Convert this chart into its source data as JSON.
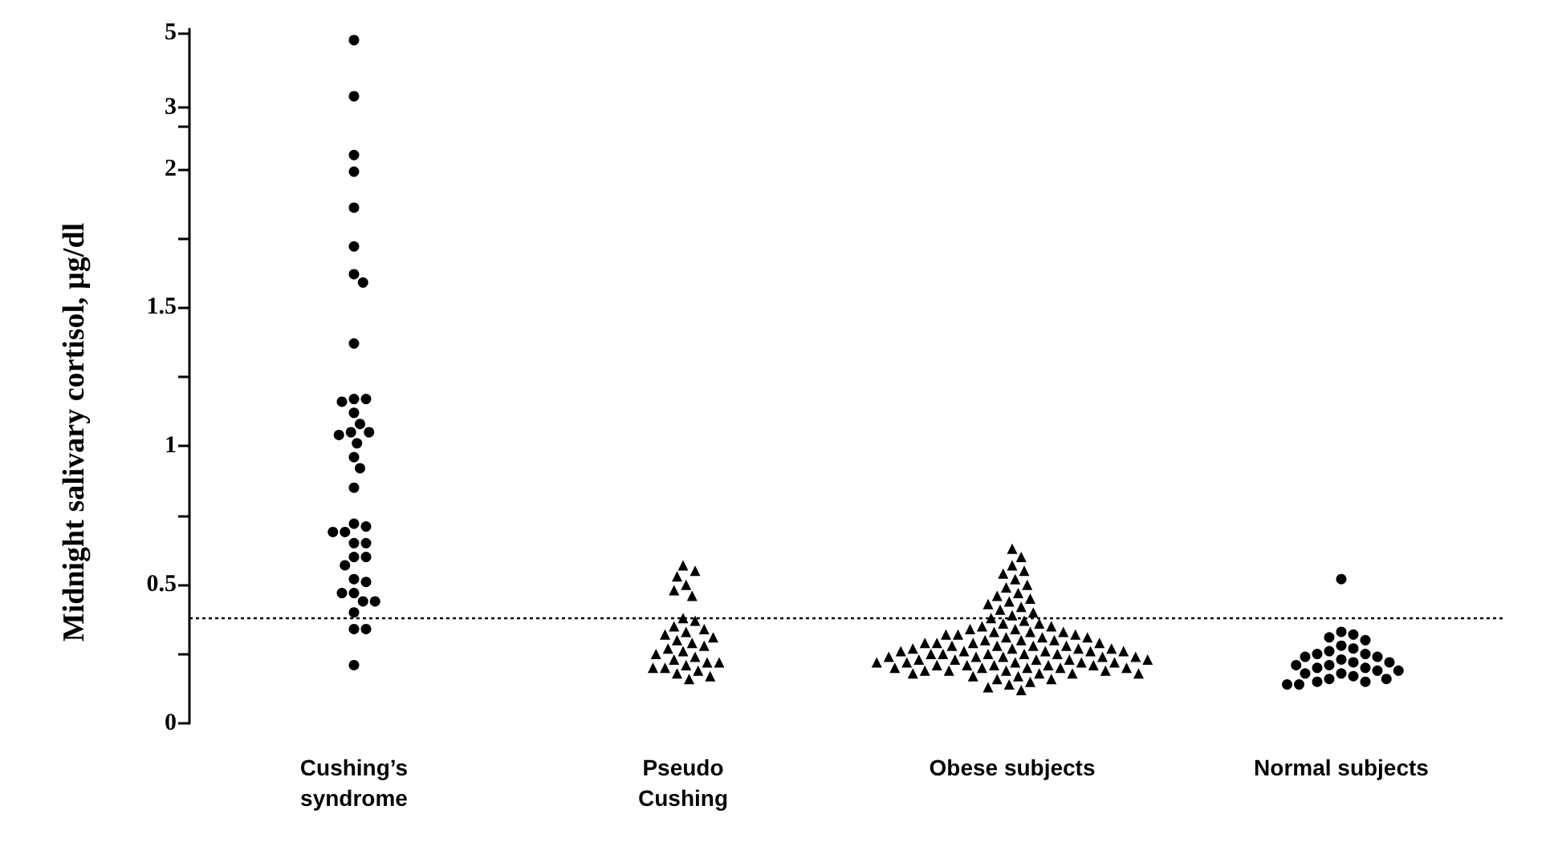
{
  "chart_data": [
    {
      "type": "scatter",
      "categories": [
        "Cushing’s\nsyndrome",
        "Pseudo\nCushing",
        "Obese subjects",
        "Normal subjects"
      ],
      "tick_labels": "y",
      "ylim": [
        2.1,
        5.1
      ],
      "yticks": [
        {
          "value": 2.5,
          "label": null
        },
        3,
        5
      ],
      "series": [
        {
          "color": "#000000",
          "marker": "circle",
          "x": [
            "Cushing’s\nsyndrome",
            "Cushing’s\nsyndrome"
          ],
          "values": [
            4.8,
            3.3
          ]
        }
      ]
    },
    {
      "type": "scatter",
      "ylabel": "Midnight salivary cortisol, µg/dl",
      "categories": [
        "Cushing’s\nsyndrome",
        "Pseudo\nCushing",
        "Obese subjects",
        "Normal subjects"
      ],
      "ylim": [
        0,
        2.1
      ],
      "yticks": [
        0,
        {
          "value": 0.25,
          "label": null
        },
        0.5,
        {
          "value": 0.75,
          "label": null
        },
        1,
        {
          "value": 1.25,
          "label": null
        },
        1.5,
        {
          "value": 1.75,
          "label": null
        },
        2
      ],
      "ref_lines": [
        {
          "axis": "y",
          "value": 0.38,
          "color": "#000000",
          "line_style": "dotted"
        }
      ],
      "series": [
        {
          "color": "#000000",
          "marker": "circle",
          "x": [
            "Cushing’s\nsyndrome",
            "Cushing’s\nsyndrome",
            "Cushing’s\nsyndrome",
            "Cushing’s\nsyndrome",
            "Cushing’s\nsyndrome",
            "Cushing’s\nsyndrome",
            "Cushing’s\nsyndrome",
            "Cushing’s\nsyndrome",
            "Cushing’s\nsyndrome",
            "Cushing’s\nsyndrome",
            "Cushing’s\nsyndrome",
            "Cushing’s\nsyndrome",
            "Cushing’s\nsyndrome",
            "Cushing’s\nsyndrome",
            "Cushing’s\nsyndrome",
            "Cushing’s\nsyndrome",
            "Cushing’s\nsyndrome",
            "Cushing’s\nsyndrome",
            "Cushing’s\nsyndrome",
            "Cushing’s\nsyndrome",
            "Cushing’s\nsyndrome",
            "Cushing’s\nsyndrome",
            "Cushing’s\nsyndrome",
            "Cushing’s\nsyndrome",
            "Cushing’s\nsyndrome",
            "Cushing’s\nsyndrome",
            "Cushing’s\nsyndrome",
            "Cushing’s\nsyndrome",
            "Cushing’s\nsyndrome",
            "Cushing’s\nsyndrome",
            "Cushing’s\nsyndrome",
            "Cushing’s\nsyndrome",
            "Cushing’s\nsyndrome",
            "Cushing’s\nsyndrome",
            "Cushing’s\nsyndrome",
            "Cushing’s\nsyndrome",
            "Cushing’s\nsyndrome",
            "Cushing’s\nsyndrome"
          ],
          "values": [
            2.05,
            1.99,
            1.86,
            1.72,
            1.62,
            1.59,
            1.37,
            1.17,
            1.17,
            1.16,
            1.12,
            1.08,
            1.05,
            1.05,
            1.04,
            1.01,
            0.96,
            0.92,
            0.85,
            0.72,
            0.71,
            0.69,
            0.69,
            0.65,
            0.65,
            0.6,
            0.6,
            0.57,
            0.52,
            0.51,
            0.47,
            0.47,
            0.44,
            0.44,
            0.4,
            0.34,
            0.34,
            0.21
          ]
        },
        {
          "color": "#000000",
          "marker": "triangle",
          "x": [
            "Pseudo\nCushing",
            "Pseudo\nCushing",
            "Pseudo\nCushing",
            "Pseudo\nCushing",
            "Pseudo\nCushing",
            "Pseudo\nCushing",
            "Pseudo\nCushing",
            "Pseudo\nCushing",
            "Pseudo\nCushing",
            "Pseudo\nCushing",
            "Pseudo\nCushing",
            "Pseudo\nCushing",
            "Pseudo\nCushing",
            "Pseudo\nCushing",
            "Pseudo\nCushing",
            "Pseudo\nCushing",
            "Pseudo\nCushing",
            "Pseudo\nCushing",
            "Pseudo\nCushing",
            "Pseudo\nCushing",
            "Pseudo\nCushing",
            "Pseudo\nCushing",
            "Pseudo\nCushing",
            "Pseudo\nCushing",
            "Pseudo\nCushing",
            "Pseudo\nCushing",
            "Pseudo\nCushing",
            "Pseudo\nCushing",
            "Pseudo\nCushing",
            "Pseudo\nCushing"
          ],
          "values": [
            0.57,
            0.55,
            0.53,
            0.5,
            0.48,
            0.46,
            0.38,
            0.37,
            0.35,
            0.34,
            0.33,
            0.32,
            0.31,
            0.3,
            0.29,
            0.28,
            0.27,
            0.26,
            0.25,
            0.24,
            0.23,
            0.22,
            0.22,
            0.21,
            0.2,
            0.2,
            0.19,
            0.18,
            0.17,
            0.16
          ]
        },
        {
          "color": "#000000",
          "marker": "triangle",
          "x": [
            "Obese subjects",
            "Obese subjects",
            "Obese subjects",
            "Obese subjects",
            "Obese subjects",
            "Obese subjects",
            "Obese subjects",
            "Obese subjects",
            "Obese subjects",
            "Obese subjects",
            "Obese subjects",
            "Obese subjects",
            "Obese subjects",
            "Obese subjects",
            "Obese subjects",
            "Obese subjects",
            "Obese subjects",
            "Obese subjects",
            "Obese subjects",
            "Obese subjects",
            "Obese subjects",
            "Obese subjects",
            "Obese subjects",
            "Obese subjects",
            "Obese subjects",
            "Obese subjects",
            "Obese subjects",
            "Obese subjects",
            "Obese subjects",
            "Obese subjects",
            "Obese subjects",
            "Obese subjects",
            "Obese subjects",
            "Obese subjects",
            "Obese subjects",
            "Obese subjects",
            "Obese subjects",
            "Obese subjects",
            "Obese subjects",
            "Obese subjects",
            "Obese subjects",
            "Obese subjects",
            "Obese subjects",
            "Obese subjects",
            "Obese subjects",
            "Obese subjects",
            "Obese subjects",
            "Obese subjects",
            "Obese subjects",
            "Obese subjects",
            "Obese subjects",
            "Obese subjects",
            "Obese subjects",
            "Obese subjects",
            "Obese subjects",
            "Obese subjects",
            "Obese subjects",
            "Obese subjects",
            "Obese subjects",
            "Obese subjects",
            "Obese subjects",
            "Obese subjects",
            "Obese subjects",
            "Obese subjects",
            "Obese subjects",
            "Obese subjects",
            "Obese subjects",
            "Obese subjects",
            "Obese subjects",
            "Obese subjects",
            "Obese subjects",
            "Obese subjects",
            "Obese subjects",
            "Obese subjects",
            "Obese subjects",
            "Obese subjects",
            "Obese subjects",
            "Obese subjects",
            "Obese subjects",
            "Obese subjects",
            "Obese subjects",
            "Obese subjects",
            "Obese subjects",
            "Obese subjects",
            "Obese subjects",
            "Obese subjects",
            "Obese subjects",
            "Obese subjects",
            "Obese subjects",
            "Obese subjects",
            "Obese subjects",
            "Obese subjects",
            "Obese subjects",
            "Obese subjects",
            "Obese subjects",
            "Obese subjects",
            "Obese subjects",
            "Obese subjects",
            "Obese subjects",
            "Obese subjects"
          ],
          "values": [
            0.63,
            0.6,
            0.57,
            0.55,
            0.54,
            0.52,
            0.5,
            0.49,
            0.47,
            0.46,
            0.45,
            0.44,
            0.43,
            0.42,
            0.41,
            0.4,
            0.39,
            0.38,
            0.37,
            0.36,
            0.36,
            0.35,
            0.35,
            0.34,
            0.34,
            0.33,
            0.33,
            0.33,
            0.32,
            0.32,
            0.32,
            0.31,
            0.31,
            0.31,
            0.3,
            0.3,
            0.3,
            0.29,
            0.29,
            0.29,
            0.29,
            0.28,
            0.28,
            0.28,
            0.28,
            0.27,
            0.27,
            0.27,
            0.27,
            0.26,
            0.26,
            0.26,
            0.26,
            0.26,
            0.25,
            0.25,
            0.25,
            0.25,
            0.25,
            0.24,
            0.24,
            0.24,
            0.24,
            0.24,
            0.23,
            0.23,
            0.23,
            0.23,
            0.23,
            0.22,
            0.22,
            0.22,
            0.22,
            0.22,
            0.21,
            0.21,
            0.21,
            0.21,
            0.21,
            0.2,
            0.2,
            0.2,
            0.2,
            0.2,
            0.19,
            0.19,
            0.19,
            0.19,
            0.18,
            0.18,
            0.18,
            0.18,
            0.17,
            0.17,
            0.16,
            0.16,
            0.15,
            0.14,
            0.13,
            0.12
          ]
        },
        {
          "color": "#000000",
          "marker": "circle",
          "x": [
            "Normal subjects",
            "Normal subjects",
            "Normal subjects",
            "Normal subjects",
            "Normal subjects",
            "Normal subjects",
            "Normal subjects",
            "Normal subjects",
            "Normal subjects",
            "Normal subjects",
            "Normal subjects",
            "Normal subjects",
            "Normal subjects",
            "Normal subjects",
            "Normal subjects",
            "Normal subjects",
            "Normal subjects",
            "Normal subjects",
            "Normal subjects",
            "Normal subjects",
            "Normal subjects",
            "Normal subjects",
            "Normal subjects",
            "Normal subjects",
            "Normal subjects",
            "Normal subjects",
            "Normal subjects",
            "Normal subjects",
            "Normal subjects",
            "Normal subjects"
          ],
          "values": [
            0.52,
            0.33,
            0.32,
            0.31,
            0.3,
            0.28,
            0.27,
            0.26,
            0.25,
            0.25,
            0.24,
            0.24,
            0.23,
            0.22,
            0.22,
            0.21,
            0.21,
            0.2,
            0.2,
            0.19,
            0.19,
            0.18,
            0.18,
            0.17,
            0.16,
            0.16,
            0.15,
            0.15,
            0.14,
            0.14
          ]
        }
      ]
    }
  ]
}
